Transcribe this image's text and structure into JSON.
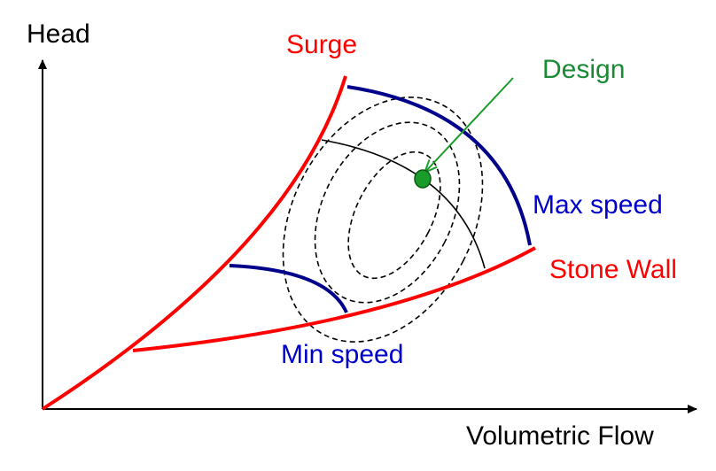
{
  "axes": {
    "y_label": "Head",
    "x_label": "Volumetric Flow"
  },
  "labels": {
    "surge": "Surge",
    "design": "Design",
    "max_speed": "Max speed",
    "stone_wall": "Stone Wall",
    "min_speed": "Min speed"
  },
  "colors": {
    "surge_line": "#ff0000",
    "stone_wall_line": "#ff0000",
    "speed_line": "#00008b",
    "design_point": "#1a9c2a",
    "design_label": "#1a8a35",
    "label_blue": "#0000cc",
    "label_red": "#ff0000",
    "axis": "#000000",
    "contour": "#000000"
  }
}
